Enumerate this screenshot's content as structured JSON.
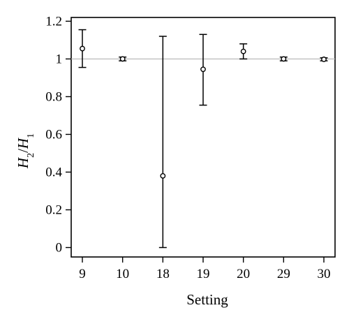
{
  "chart_data": {
    "type": "scatter",
    "title": "",
    "xlabel": "Setting",
    "ylabel": {
      "main": "H",
      "sub1": "2",
      "slash": "/",
      "main2": "H",
      "sub2": "1"
    },
    "categories": [
      "9",
      "10",
      "18",
      "19",
      "20",
      "29",
      "30"
    ],
    "series": [
      {
        "values": [
          1.055,
          1.0,
          0.38,
          0.945,
          1.04,
          1.0,
          0.998
        ],
        "err_low": [
          0.955,
          0.99,
          0.0,
          0.755,
          1.0,
          0.99,
          0.99
        ],
        "err_high": [
          1.155,
          1.01,
          1.12,
          1.13,
          1.08,
          1.01,
          1.006
        ]
      }
    ],
    "reference_line": 1.0,
    "ylim": [
      -0.05,
      1.22
    ],
    "yticks": [
      0,
      0.2,
      0.4,
      0.6,
      0.8,
      1,
      1.2
    ],
    "ytick_labels": [
      "0",
      "0.2",
      "0.4",
      "0.6",
      "0.8",
      "1",
      "1.2"
    ],
    "grid": false,
    "legend": "none",
    "colors": {
      "marker": "#000000",
      "reference": "#b3b3b3",
      "axis": "#000000"
    }
  }
}
